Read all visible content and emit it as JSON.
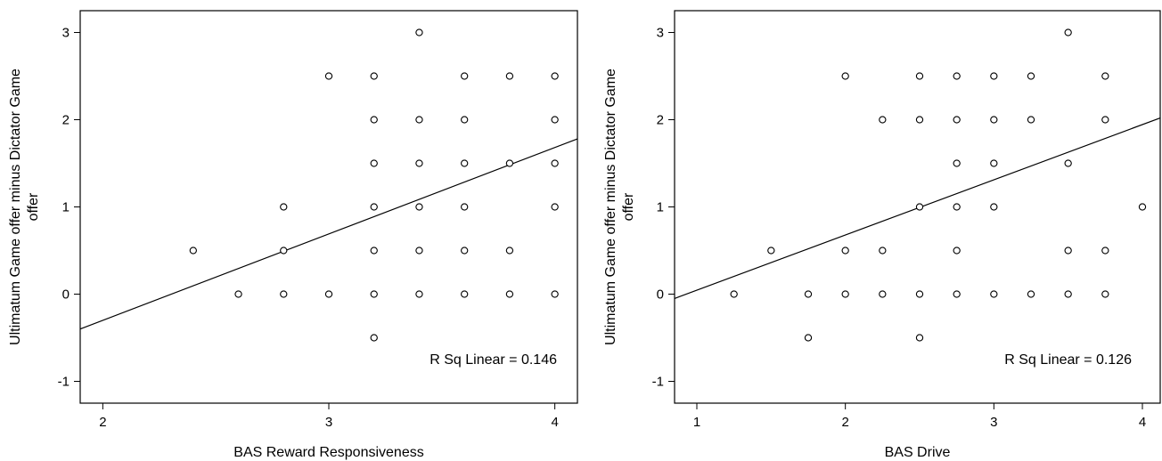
{
  "chart_data": [
    {
      "type": "scatter",
      "xlabel": "BAS Reward Responsiveness",
      "ylabel_lines": [
        "Ultimatum Game offer minus Dictator Game",
        "offer"
      ],
      "xlim": [
        1.9,
        4.1
      ],
      "ylim": [
        -1.25,
        3.25
      ],
      "x_ticks": [
        2,
        3,
        4
      ],
      "y_ticks": [
        -1,
        0,
        1,
        2,
        3
      ],
      "fit_line": {
        "x": [
          1.9,
          4.1
        ],
        "y": [
          -0.4,
          1.78
        ]
      },
      "annotation": "R Sq Linear = 0.146",
      "points": [
        {
          "x": 2.4,
          "y": 0.5
        },
        {
          "x": 2.6,
          "y": 0
        },
        {
          "x": 2.8,
          "y": 1
        },
        {
          "x": 2.8,
          "y": 0.5
        },
        {
          "x": 2.8,
          "y": 0
        },
        {
          "x": 3.0,
          "y": 2.5
        },
        {
          "x": 3.0,
          "y": 0
        },
        {
          "x": 3.2,
          "y": 2.5
        },
        {
          "x": 3.2,
          "y": 2
        },
        {
          "x": 3.2,
          "y": 1.5
        },
        {
          "x": 3.2,
          "y": 1
        },
        {
          "x": 3.2,
          "y": 0.5
        },
        {
          "x": 3.2,
          "y": 0
        },
        {
          "x": 3.2,
          "y": -0.5
        },
        {
          "x": 3.4,
          "y": 3
        },
        {
          "x": 3.4,
          "y": 2
        },
        {
          "x": 3.4,
          "y": 1.5
        },
        {
          "x": 3.4,
          "y": 1
        },
        {
          "x": 3.4,
          "y": 0.5
        },
        {
          "x": 3.4,
          "y": 0
        },
        {
          "x": 3.6,
          "y": 2.5
        },
        {
          "x": 3.6,
          "y": 2
        },
        {
          "x": 3.6,
          "y": 1.5
        },
        {
          "x": 3.6,
          "y": 1
        },
        {
          "x": 3.6,
          "y": 0.5
        },
        {
          "x": 3.6,
          "y": 0
        },
        {
          "x": 3.8,
          "y": 2.5
        },
        {
          "x": 3.8,
          "y": 1.5
        },
        {
          "x": 3.8,
          "y": 0.5
        },
        {
          "x": 3.8,
          "y": 0
        },
        {
          "x": 4.0,
          "y": 2.5
        },
        {
          "x": 4.0,
          "y": 2
        },
        {
          "x": 4.0,
          "y": 1.5
        },
        {
          "x": 4.0,
          "y": 1
        },
        {
          "x": 4.0,
          "y": 0
        }
      ]
    },
    {
      "type": "scatter",
      "xlabel": "BAS Drive",
      "ylabel_lines": [
        "Ultimatum Game offer minus Dictator Game",
        "offer"
      ],
      "xlim": [
        0.85,
        4.12
      ],
      "ylim": [
        -1.25,
        3.25
      ],
      "x_ticks": [
        1,
        2,
        3,
        4
      ],
      "y_ticks": [
        -1,
        0,
        1,
        2,
        3
      ],
      "fit_line": {
        "x": [
          0.85,
          4.12
        ],
        "y": [
          -0.05,
          2.02
        ]
      },
      "annotation": "R Sq Linear = 0.126",
      "points": [
        {
          "x": 1.25,
          "y": 0
        },
        {
          "x": 1.5,
          "y": 0.5
        },
        {
          "x": 1.75,
          "y": 0
        },
        {
          "x": 1.75,
          "y": -0.5
        },
        {
          "x": 2.0,
          "y": 2.5
        },
        {
          "x": 2.0,
          "y": 0.5
        },
        {
          "x": 2.0,
          "y": 0
        },
        {
          "x": 2.25,
          "y": 2
        },
        {
          "x": 2.25,
          "y": 0.5
        },
        {
          "x": 2.25,
          "y": 0
        },
        {
          "x": 2.5,
          "y": 2.5
        },
        {
          "x": 2.5,
          "y": 2
        },
        {
          "x": 2.5,
          "y": 1
        },
        {
          "x": 2.5,
          "y": 0
        },
        {
          "x": 2.5,
          "y": -0.5
        },
        {
          "x": 2.75,
          "y": 2.5
        },
        {
          "x": 2.75,
          "y": 2
        },
        {
          "x": 2.75,
          "y": 1.5
        },
        {
          "x": 2.75,
          "y": 1
        },
        {
          "x": 2.75,
          "y": 0.5
        },
        {
          "x": 2.75,
          "y": 0
        },
        {
          "x": 3.0,
          "y": 2.5
        },
        {
          "x": 3.0,
          "y": 2
        },
        {
          "x": 3.0,
          "y": 1.5
        },
        {
          "x": 3.0,
          "y": 1
        },
        {
          "x": 3.0,
          "y": 0
        },
        {
          "x": 3.25,
          "y": 2.5
        },
        {
          "x": 3.25,
          "y": 2
        },
        {
          "x": 3.25,
          "y": 0
        },
        {
          "x": 3.5,
          "y": 3
        },
        {
          "x": 3.5,
          "y": 1.5
        },
        {
          "x": 3.5,
          "y": 0.5
        },
        {
          "x": 3.5,
          "y": 0
        },
        {
          "x": 3.75,
          "y": 2.5
        },
        {
          "x": 3.75,
          "y": 2
        },
        {
          "x": 3.75,
          "y": 0.5
        },
        {
          "x": 3.75,
          "y": 0
        },
        {
          "x": 4.0,
          "y": 1
        }
      ]
    }
  ]
}
